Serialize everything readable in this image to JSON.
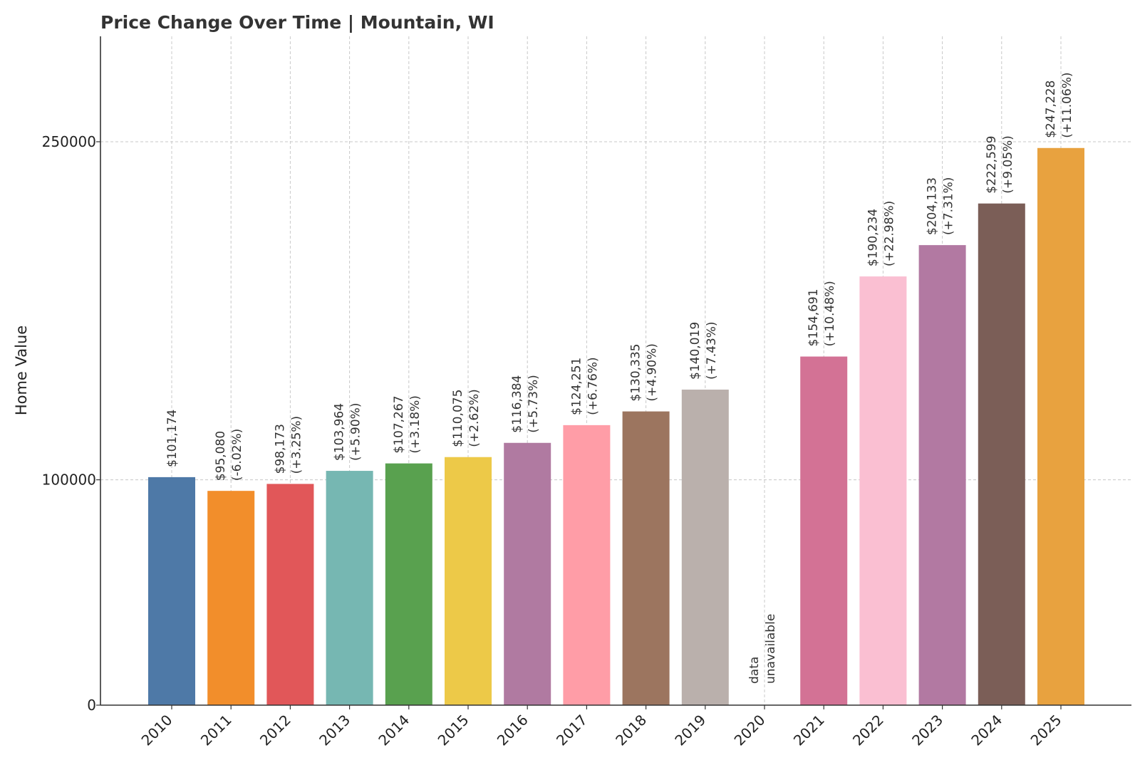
{
  "chart_data": {
    "type": "bar",
    "title": "Price Change Over Time | Mountain, WI",
    "xlabel": "",
    "ylabel": "Home Value",
    "ylim": [
      0,
      250000
    ],
    "yticks": [
      "0",
      "100000",
      "250000"
    ],
    "grid": true,
    "categories": [
      "2010",
      "2011",
      "2012",
      "2013",
      "2014",
      "2015",
      "2016",
      "2017",
      "2018",
      "2019",
      "2020",
      "2021",
      "2022",
      "2023",
      "2024",
      "2025"
    ],
    "values": [
      101174,
      95080,
      98173,
      103964,
      107267,
      110075,
      116384,
      124251,
      130335,
      140019,
      null,
      154691,
      190234,
      204133,
      222599,
      247228
    ],
    "value_labels": [
      "$101,174",
      "$95,080",
      "$98,173",
      "$103,964",
      "$107,267",
      "$110,075",
      "$116,384",
      "$124,251",
      "$130,335",
      "$140,019",
      "data",
      "$154,691",
      "$190,234",
      "$204,133",
      "$222,599",
      "$247,228"
    ],
    "change_labels": [
      "",
      "(-6.02%)",
      "(+3.25%)",
      "(+5.90%)",
      "(+3.18%)",
      "(+2.62%)",
      "(+5.73%)",
      "(+6.76%)",
      "(+4.90%)",
      "(+7.43%)",
      "unavailable",
      "(+10.48%)",
      "(+22.98%)",
      "(+7.31%)",
      "(+9.05%)",
      "(+11.06%)"
    ],
    "colors": [
      "#4e79a7",
      "#f28e2b",
      "#e15759",
      "#76b7b2",
      "#59a14f",
      "#edc948",
      "#b07aa1",
      "#ff9da7",
      "#9c755f",
      "#bab0ac",
      "#ffffff",
      "#d37295",
      "#fabfd2",
      "#b279a2",
      "#7b5e57",
      "#e8a23f"
    ]
  }
}
